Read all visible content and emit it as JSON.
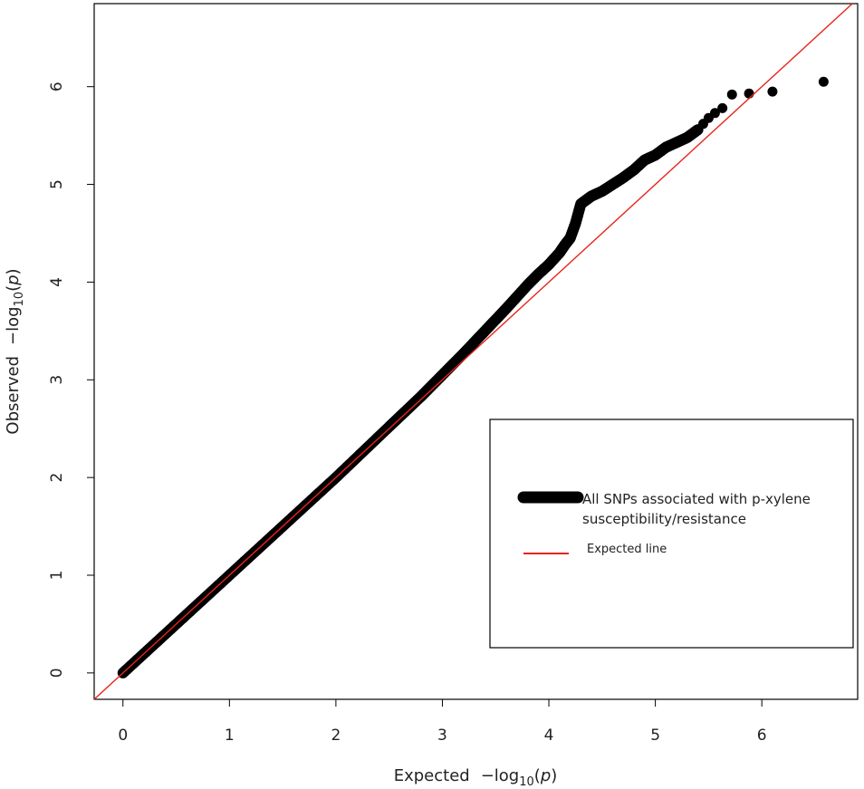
{
  "chart_data": {
    "type": "scatter",
    "xlabel": "Expected",
    "ylabel": "Observed",
    "axis_unit_parts": {
      "prefix": "−log",
      "sub": "10",
      "open": "(",
      "var": "p",
      "close": ")"
    },
    "xlim": [
      -0.27,
      6.9
    ],
    "ylim": [
      -0.27,
      6.85
    ],
    "x_ticks": [
      0,
      1,
      2,
      3,
      4,
      5,
      6
    ],
    "y_ticks": [
      0,
      1,
      2,
      3,
      4,
      5,
      6
    ],
    "x_tick_labels": [
      "0",
      "1",
      "2",
      "3",
      "4",
      "5",
      "6"
    ],
    "y_tick_labels": [
      "0",
      "1",
      "2",
      "3",
      "4",
      "5",
      "6"
    ],
    "grid": false,
    "legend_position": "bottom-right",
    "legend": [
      {
        "label_lines": [
          "All SNPs associated with p-xylene",
          "susceptibility/resistance"
        ],
        "symbol": "thick-line",
        "color": "#000000"
      },
      {
        "label_lines": [
          "Expected line"
        ],
        "symbol": "line",
        "color": "#e8231b"
      }
    ],
    "series": [
      {
        "name": "All SNPs associated with p-xylene susceptibility/resistance",
        "color": "#000000",
        "curve_x": [
          0,
          0.5,
          1.0,
          1.5,
          2.0,
          2.5,
          2.8,
          3.0,
          3.2,
          3.4,
          3.6,
          3.8,
          3.9,
          4.0,
          4.1,
          4.15,
          4.2,
          4.25,
          4.3,
          4.4,
          4.5,
          4.6,
          4.7,
          4.8,
          4.9,
          5.0,
          5.1,
          5.2,
          5.3,
          5.4
        ],
        "curve_y": [
          0,
          0.5,
          1.0,
          1.5,
          2.0,
          2.52,
          2.83,
          3.05,
          3.27,
          3.5,
          3.73,
          3.97,
          4.08,
          4.18,
          4.3,
          4.38,
          4.45,
          4.6,
          4.8,
          4.88,
          4.93,
          5.0,
          5.07,
          5.15,
          5.25,
          5.3,
          5.38,
          5.43,
          5.48,
          5.56
        ],
        "outliers_x": [
          5.45,
          5.5,
          5.56,
          5.63,
          5.72,
          5.88,
          6.1,
          6.58
        ],
        "outliers_y": [
          5.62,
          5.68,
          5.73,
          5.78,
          5.92,
          5.93,
          5.95,
          6.05
        ]
      },
      {
        "name": "Expected line",
        "color": "#e8231b",
        "x": [
          -0.27,
          6.9
        ],
        "y": [
          -0.27,
          6.9
        ]
      }
    ]
  }
}
